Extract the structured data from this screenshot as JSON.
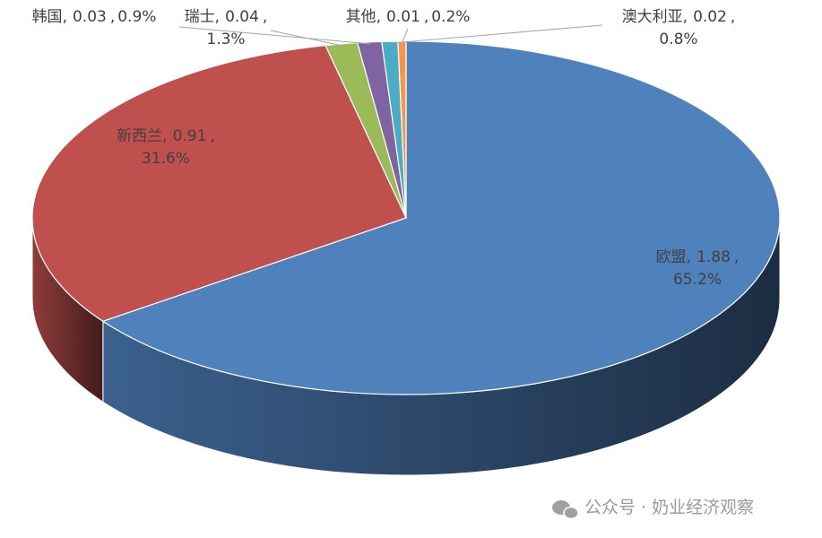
{
  "chart_data": {
    "type": "pie3d",
    "categories": [
      "欧盟",
      "新西兰",
      "瑞士",
      "韩国",
      "澳大利亚",
      "其他"
    ],
    "values": [
      1.88,
      0.91,
      0.04,
      0.03,
      0.02,
      0.01
    ],
    "percents": [
      {
        "value": 65.2,
        "label": "65.2%"
      },
      {
        "value": 31.6,
        "label": "31.6%"
      },
      {
        "value": 1.3,
        "label": "1.3%"
      },
      {
        "value": 0.9,
        "label": "0.9%"
      },
      {
        "value": 0.8,
        "label": "0.8%"
      },
      {
        "value": 0.2,
        "label": "0.2%"
      }
    ],
    "label_separator": ",",
    "colors": [
      "#4f81bd",
      "#c0504d",
      "#9bbb59",
      "#8064a2",
      "#4bacc6",
      "#f79646"
    ],
    "watermark": "公众号 · 奶业经济观察"
  }
}
